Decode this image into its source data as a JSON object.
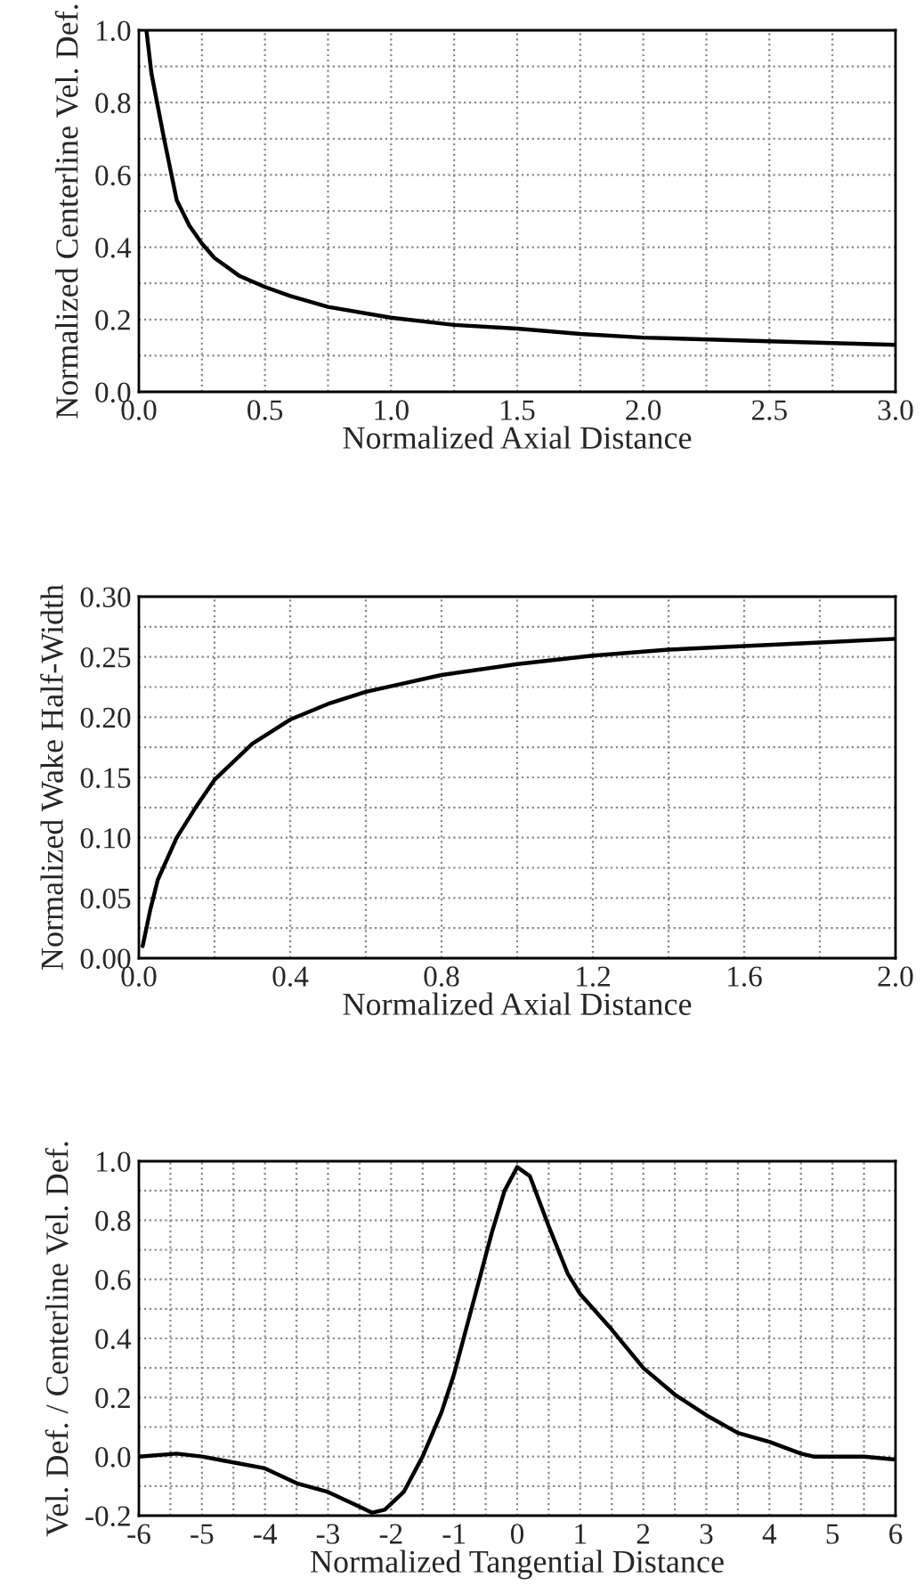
{
  "chart_data": [
    {
      "type": "line",
      "xlabel": "Normalized Axial Distance",
      "ylabel": "Normalized Centerline Vel. Def.",
      "grid": true,
      "x": [
        0.03,
        0.05,
        0.1,
        0.15,
        0.2,
        0.25,
        0.3,
        0.4,
        0.5,
        0.6,
        0.75,
        1.0,
        1.25,
        1.5,
        1.75,
        2.0,
        2.5,
        3.0
      ],
      "series": [
        {
          "color": "#000000",
          "values": [
            1.0,
            0.88,
            0.7,
            0.53,
            0.46,
            0.41,
            0.37,
            0.32,
            0.29,
            0.265,
            0.235,
            0.205,
            0.185,
            0.175,
            0.16,
            0.15,
            0.14,
            0.13
          ]
        }
      ],
      "xlim": [
        0,
        3
      ],
      "ylim": [
        0,
        1
      ],
      "xticks": [
        {
          "value": 0,
          "label": "0.0"
        },
        {
          "value": 0.25,
          "label": null
        },
        {
          "value": 0.5,
          "label": "0.5"
        },
        {
          "value": 0.75,
          "label": null
        },
        {
          "value": 1,
          "label": "1.0"
        },
        {
          "value": 1.25,
          "label": null
        },
        {
          "value": 1.5,
          "label": "1.5"
        },
        {
          "value": 1.75,
          "label": null
        },
        {
          "value": 2,
          "label": "2.0"
        },
        {
          "value": 2.25,
          "label": null
        },
        {
          "value": 2.5,
          "label": "2.5"
        },
        {
          "value": 2.75,
          "label": null
        },
        {
          "value": 3,
          "label": "3.0"
        }
      ],
      "yticks": [
        {
          "value": 0,
          "label": "0.0"
        },
        {
          "value": 0.1,
          "label": null
        },
        {
          "value": 0.2,
          "label": "0.2"
        },
        {
          "value": 0.3,
          "label": null
        },
        {
          "value": 0.4,
          "label": "0.4"
        },
        {
          "value": 0.5,
          "label": null
        },
        {
          "value": 0.6,
          "label": "0.6"
        },
        {
          "value": 0.7,
          "label": null
        },
        {
          "value": 0.8,
          "label": "0.8"
        },
        {
          "value": 0.9,
          "label": null
        },
        {
          "value": 1,
          "label": "1.0"
        }
      ]
    },
    {
      "type": "line",
      "xlabel": "Normalized Axial Distance",
      "ylabel": "Normalized Wake Half-Width",
      "grid": true,
      "x": [
        0.01,
        0.03,
        0.05,
        0.1,
        0.15,
        0.2,
        0.3,
        0.4,
        0.5,
        0.6,
        0.8,
        1.0,
        1.2,
        1.4,
        1.6,
        1.8,
        2.0
      ],
      "series": [
        {
          "color": "#000000",
          "values": [
            0.01,
            0.04,
            0.065,
            0.1,
            0.125,
            0.148,
            0.178,
            0.198,
            0.211,
            0.221,
            0.235,
            0.244,
            0.251,
            0.256,
            0.259,
            0.262,
            0.265
          ]
        }
      ],
      "xlim": [
        0,
        2
      ],
      "ylim": [
        0,
        0.3
      ],
      "xticks": [
        {
          "value": 0,
          "label": "0.0"
        },
        {
          "value": 0.2,
          "label": null
        },
        {
          "value": 0.4,
          "label": "0.4"
        },
        {
          "value": 0.6,
          "label": null
        },
        {
          "value": 0.8,
          "label": "0.8"
        },
        {
          "value": 1.0,
          "label": null
        },
        {
          "value": 1.2,
          "label": "1.2"
        },
        {
          "value": 1.4,
          "label": null
        },
        {
          "value": 1.6,
          "label": "1.6"
        },
        {
          "value": 1.8,
          "label": null
        },
        {
          "value": 2,
          "label": "2.0"
        }
      ],
      "yticks": [
        {
          "value": 0,
          "label": "0.00"
        },
        {
          "value": 0.025,
          "label": null
        },
        {
          "value": 0.05,
          "label": "0.05"
        },
        {
          "value": 0.075,
          "label": null
        },
        {
          "value": 0.1,
          "label": "0.10"
        },
        {
          "value": 0.125,
          "label": null
        },
        {
          "value": 0.15,
          "label": "0.15"
        },
        {
          "value": 0.175,
          "label": null
        },
        {
          "value": 0.2,
          "label": "0.20"
        },
        {
          "value": 0.225,
          "label": null
        },
        {
          "value": 0.25,
          "label": "0.25"
        },
        {
          "value": 0.275,
          "label": null
        },
        {
          "value": 0.3,
          "label": "0.30"
        }
      ]
    },
    {
      "type": "line",
      "xlabel": "Normalized Tangential Distance",
      "ylabel": "Vel. Def. / Centerline Vel. Def.",
      "grid": true,
      "x": [
        -6,
        -5.4,
        -5,
        -4.5,
        -4,
        -3.5,
        -3,
        -2.5,
        -2.3,
        -2.1,
        -1.8,
        -1.5,
        -1.2,
        -1,
        -0.7,
        -0.4,
        -0.2,
        0,
        0.2,
        0.5,
        0.8,
        1,
        1.5,
        2,
        2.5,
        3,
        3.5,
        4,
        4.5,
        4.7,
        5,
        5.5,
        6
      ],
      "series": [
        {
          "color": "#000000",
          "values": [
            0,
            0.01,
            0,
            -0.02,
            -0.04,
            -0.09,
            -0.12,
            -0.17,
            -0.19,
            -0.18,
            -0.12,
            0,
            0.15,
            0.28,
            0.52,
            0.76,
            0.9,
            0.98,
            0.95,
            0.78,
            0.62,
            0.55,
            0.43,
            0.3,
            0.21,
            0.14,
            0.08,
            0.05,
            0.01,
            0,
            0,
            0,
            -0.01
          ]
        }
      ],
      "xlim": [
        -6,
        6
      ],
      "ylim": [
        -0.2,
        1
      ],
      "xticks": [
        -6,
        {
          "value": -5.5,
          "label": null
        },
        -5,
        {
          "value": -4.5,
          "label": null
        },
        -4,
        {
          "value": -3.5,
          "label": null
        },
        -3,
        {
          "value": -2.5,
          "label": null
        },
        -2,
        {
          "value": -1.5,
          "label": null
        },
        -1,
        {
          "value": -0.5,
          "label": null
        },
        0,
        {
          "value": 0.5,
          "label": null
        },
        1,
        {
          "value": 1.5,
          "label": null
        },
        2,
        {
          "value": 2.5,
          "label": null
        },
        3,
        {
          "value": 3.5,
          "label": null
        },
        4,
        {
          "value": 4.5,
          "label": null
        },
        5,
        {
          "value": 5.5,
          "label": null
        },
        6
      ],
      "yticks": [
        {
          "value": -0.2,
          "label": "-0.2"
        },
        {
          "value": -0.1,
          "label": null
        },
        {
          "value": 0,
          "label": "0.0"
        },
        {
          "value": 0.1,
          "label": null
        },
        {
          "value": 0.2,
          "label": "0.2"
        },
        {
          "value": 0.3,
          "label": null
        },
        {
          "value": 0.4,
          "label": "0.4"
        },
        {
          "value": 0.5,
          "label": null
        },
        {
          "value": 0.6,
          "label": "0.6"
        },
        {
          "value": 0.7,
          "label": null
        },
        {
          "value": 0.8,
          "label": "0.8"
        },
        {
          "value": 0.9,
          "label": null
        },
        {
          "value": 1,
          "label": "1.0"
        }
      ]
    }
  ]
}
